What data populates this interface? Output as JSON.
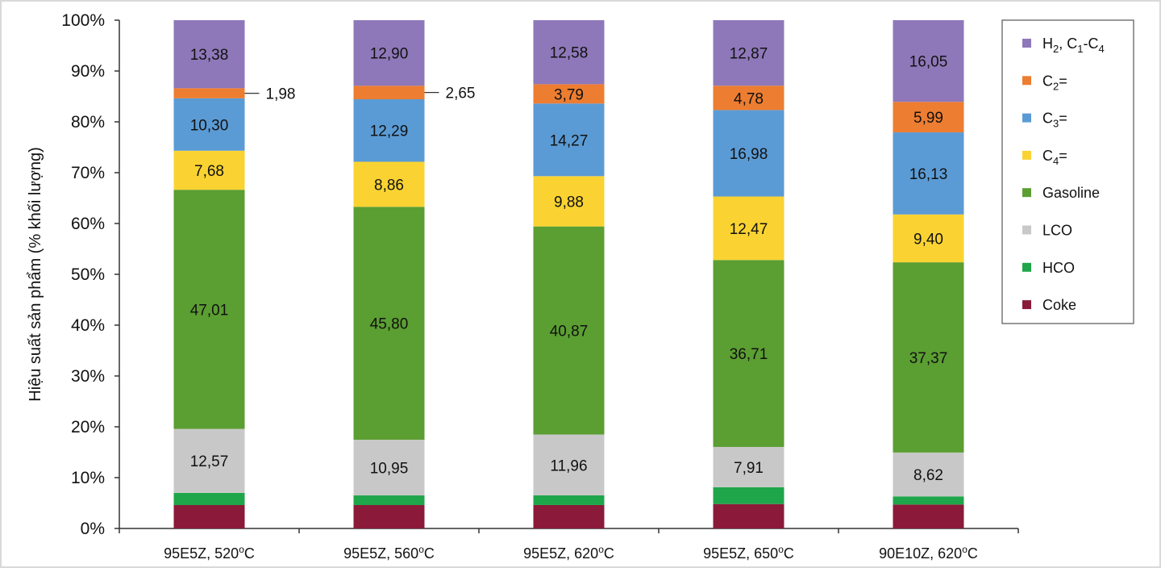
{
  "chart_data": {
    "type": "bar",
    "stacked": true,
    "percent_stacked": true,
    "categories": [
      {
        "prefix": "95E5Z, 520",
        "sup": "o",
        "suffix": "C"
      },
      {
        "prefix": "95E5Z, 560",
        "sup": "o",
        "suffix": "C"
      },
      {
        "prefix": "95E5Z, 620",
        "sup": "o",
        "suffix": "C"
      },
      {
        "prefix": "95E5Z, 650",
        "sup": "o",
        "suffix": "C"
      },
      {
        "prefix": "90E10Z, 620",
        "sup": "o",
        "suffix": "C"
      }
    ],
    "ylabel": "Hiệu suất sản phẩm (% khối lượng)",
    "xlabel": "",
    "ylim": [
      0,
      100
    ],
    "y_ticks": [
      "0%",
      "10%",
      "20%",
      "30%",
      "40%",
      "50%",
      "60%",
      "70%",
      "80%",
      "90%",
      "100%"
    ],
    "grid": false,
    "legend_position": "right",
    "series": [
      {
        "key": "coke",
        "name": "Coke",
        "color": "#8b1a3a",
        "values": [
          4.6,
          4.6,
          4.6,
          4.8,
          4.7
        ],
        "labels": [
          "",
          "",
          "",
          "",
          ""
        ]
      },
      {
        "key": "hco",
        "name": "HCO",
        "color": "#1fa64a",
        "values": [
          2.4,
          1.9,
          1.9,
          3.3,
          1.6
        ],
        "labels": [
          "",
          "",
          "",
          "",
          ""
        ]
      },
      {
        "key": "lco",
        "name": "LCO",
        "color": "#c8c8c8",
        "values": [
          12.57,
          10.95,
          11.96,
          7.91,
          8.62
        ],
        "labels": [
          "12,57",
          "10,95",
          "11,96",
          "7,91",
          "8,62"
        ]
      },
      {
        "key": "gasoline",
        "name": "Gasoline",
        "color": "#5b9e32",
        "values": [
          47.01,
          45.8,
          40.87,
          36.71,
          37.37
        ],
        "labels": [
          "47,01",
          "45,80",
          "40,87",
          "36,71",
          "37,37"
        ]
      },
      {
        "key": "c4",
        "name_parts": [
          "C",
          "4",
          "="
        ],
        "color": "#fad332",
        "values": [
          7.68,
          8.86,
          9.88,
          12.47,
          9.4
        ],
        "labels": [
          "7,68",
          "8,86",
          "9,88",
          "12,47",
          "9,40"
        ]
      },
      {
        "key": "c3",
        "name_parts": [
          "C",
          "3",
          "="
        ],
        "color": "#5b9bd5",
        "values": [
          10.3,
          12.29,
          14.27,
          16.98,
          16.13
        ],
        "labels": [
          "10,30",
          "12,29",
          "14,27",
          "16,98",
          "16,13"
        ]
      },
      {
        "key": "c2",
        "name_parts": [
          "C",
          "2",
          "="
        ],
        "color": "#ed7d31",
        "values": [
          1.98,
          2.65,
          3.79,
          4.78,
          5.99
        ],
        "labels": [
          "1,98",
          "2,65",
          "3,79",
          "4,78",
          "5,99"
        ],
        "callout": [
          true,
          true,
          false,
          false,
          false
        ]
      },
      {
        "key": "h2c1c4",
        "name_parts": [
          "H",
          "2",
          ", C",
          "1",
          "-C",
          "4"
        ],
        "color": "#8e78b9",
        "values": [
          13.38,
          12.9,
          12.58,
          12.87,
          16.05
        ],
        "labels": [
          "13,38",
          "12,90",
          "12,58",
          "12,87",
          "16,05"
        ]
      }
    ],
    "legend_order": [
      "h2c1c4",
      "c2",
      "c3",
      "c4",
      "gasoline",
      "lco",
      "hco",
      "coke"
    ]
  }
}
